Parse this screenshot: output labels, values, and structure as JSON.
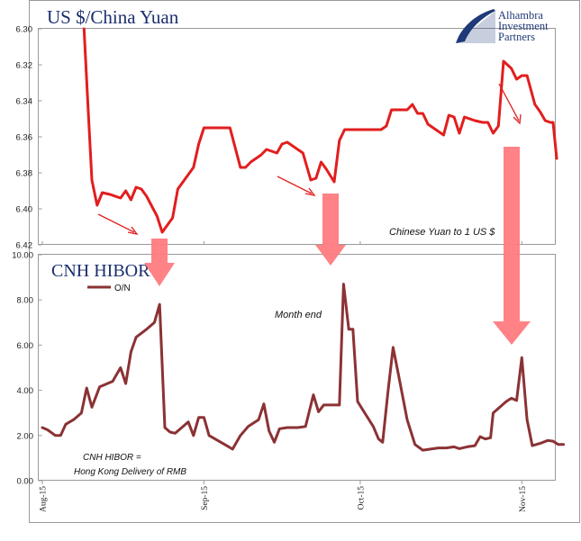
{
  "logo": {
    "line1": "Alhambra",
    "line2": "Investment",
    "line3": "Partners",
    "color": "#1f3a78"
  },
  "chart_data": [
    {
      "type": "line",
      "title": "US $/China Yuan",
      "annotation": "Chinese Yuan to 1 US $",
      "yticks": [
        "6.30",
        "6.32",
        "6.34",
        "6.36",
        "6.38",
        "6.40",
        "6.42"
      ],
      "ylim": [
        6.3,
        6.42
      ],
      "y_inverted": true,
      "xlim": [
        0,
        98
      ],
      "x_ticks_at_days": [
        0,
        31,
        61,
        92
      ],
      "grid": false,
      "color": "#e21e1e",
      "series": [
        {
          "points": [
            [
              8,
              6.3
            ],
            [
              8.8,
              6.345
            ],
            [
              9.5,
              6.384
            ],
            [
              10.5,
              6.398
            ],
            [
              11.5,
              6.391
            ],
            [
              13,
              6.392
            ],
            [
              15,
              6.394
            ],
            [
              16,
              6.39
            ],
            [
              17,
              6.395
            ],
            [
              18,
              6.388
            ],
            [
              19,
              6.389
            ],
            [
              20,
              6.393
            ],
            [
              22,
              6.404
            ],
            [
              23,
              6.413
            ],
            [
              25,
              6.405
            ],
            [
              26,
              6.389
            ],
            [
              29,
              6.377
            ],
            [
              30,
              6.364
            ],
            [
              31,
              6.355
            ],
            [
              32,
              6.355
            ],
            [
              33.5,
              6.355
            ],
            [
              35,
              6.355
            ],
            [
              36,
              6.355
            ],
            [
              38,
              6.377
            ],
            [
              39,
              6.377
            ],
            [
              40,
              6.374
            ],
            [
              42,
              6.37
            ],
            [
              43,
              6.367
            ],
            [
              45,
              6.369
            ],
            [
              46,
              6.364
            ],
            [
              47,
              6.363
            ],
            [
              49,
              6.367
            ],
            [
              50,
              6.369
            ],
            [
              51.5,
              6.384
            ],
            [
              52.5,
              6.383
            ],
            [
              53.5,
              6.374
            ],
            [
              54.5,
              6.378
            ],
            [
              56,
              6.385
            ],
            [
              57,
              6.362
            ],
            [
              58,
              6.356
            ],
            [
              60,
              6.356
            ],
            [
              62,
              6.356
            ],
            [
              64,
              6.356
            ],
            [
              65,
              6.356
            ],
            [
              66,
              6.354
            ],
            [
              67,
              6.345
            ],
            [
              68.5,
              6.345
            ],
            [
              70,
              6.345
            ],
            [
              71,
              6.342
            ],
            [
              72,
              6.347
            ],
            [
              73,
              6.347
            ],
            [
              74,
              6.353
            ],
            [
              76,
              6.357
            ],
            [
              77,
              6.359
            ],
            [
              78,
              6.348
            ],
            [
              79,
              6.349
            ],
            [
              80,
              6.358
            ],
            [
              81,
              6.349
            ],
            [
              83,
              6.351
            ],
            [
              84.5,
              6.352
            ],
            [
              85.5,
              6.352
            ],
            [
              86.5,
              6.358
            ],
            [
              87.5,
              6.354
            ],
            [
              88.5,
              6.318
            ],
            [
              90,
              6.322
            ],
            [
              91,
              6.328
            ],
            [
              92,
              6.326
            ],
            [
              93,
              6.326
            ],
            [
              94.5,
              6.342
            ],
            [
              95.5,
              6.346
            ],
            [
              96.5,
              6.351
            ],
            [
              97.5,
              6.352
            ],
            [
              98,
              6.352
            ],
            [
              98.7,
              6.372
            ]
          ]
        }
      ]
    },
    {
      "type": "line",
      "title": "CNH HIBOR",
      "legend": "O/N",
      "legend_position": "top-left",
      "annotations": [
        "Month end",
        "CNH HIBOR =",
        "Hong Kong Delivery of RMB"
      ],
      "yticks": [
        "0.00",
        "2.00",
        "4.00",
        "6.00",
        "8.00",
        "10.00"
      ],
      "ylim": [
        0,
        10
      ],
      "xlim": [
        0,
        98
      ],
      "xticks": [
        "Aug-15",
        "Sep-15",
        "Oct-15",
        "Nov-15"
      ],
      "x_ticks_at_days": [
        0,
        31,
        61,
        92
      ],
      "grid": false,
      "color": "#8b3234",
      "series": [
        {
          "name": "O/N",
          "points": [
            [
              0,
              2.35
            ],
            [
              1,
              2.25
            ],
            [
              2.5,
              2.0
            ],
            [
              3.5,
              2.0
            ],
            [
              4.5,
              2.5
            ],
            [
              6,
              2.7
            ],
            [
              7.5,
              3.0
            ],
            [
              8.5,
              4.1
            ],
            [
              9.5,
              3.25
            ],
            [
              11,
              4.15
            ],
            [
              13.5,
              4.4
            ],
            [
              15,
              5.0
            ],
            [
              16,
              4.3
            ],
            [
              17,
              5.7
            ],
            [
              18,
              6.35
            ],
            [
              20,
              6.7
            ],
            [
              21.5,
              7.0
            ],
            [
              22.5,
              7.8
            ],
            [
              23.5,
              2.35
            ],
            [
              24.5,
              2.15
            ],
            [
              25.5,
              2.1
            ],
            [
              28,
              2.6
            ],
            [
              29,
              2.0
            ],
            [
              30,
              2.8
            ],
            [
              31,
              2.8
            ],
            [
              32,
              2.0
            ],
            [
              33.5,
              1.8
            ],
            [
              35,
              1.6
            ],
            [
              36.5,
              1.4
            ],
            [
              38,
              2.0
            ],
            [
              39.5,
              2.4
            ],
            [
              41.5,
              2.7
            ],
            [
              42.5,
              3.4
            ],
            [
              43.5,
              2.2
            ],
            [
              44.5,
              1.7
            ],
            [
              45.5,
              2.3
            ],
            [
              47,
              2.35
            ],
            [
              49,
              2.35
            ],
            [
              50.5,
              2.4
            ],
            [
              52,
              3.8
            ],
            [
              53,
              3.05
            ],
            [
              54,
              3.35
            ],
            [
              56.5,
              3.35
            ],
            [
              57,
              3.35
            ],
            [
              57.8,
              8.7
            ],
            [
              58.8,
              6.7
            ],
            [
              59.6,
              6.7
            ],
            [
              60.5,
              3.5
            ],
            [
              62,
              2.95
            ],
            [
              63.5,
              2.4
            ],
            [
              64.5,
              1.85
            ],
            [
              65.3,
              1.7
            ],
            [
              66.3,
              3.9
            ],
            [
              67.3,
              5.9
            ],
            [
              68.5,
              4.5
            ],
            [
              70,
              2.7
            ],
            [
              71.5,
              1.6
            ],
            [
              73,
              1.35
            ],
            [
              74.5,
              1.4
            ],
            [
              76,
              1.45
            ],
            [
              77.5,
              1.45
            ],
            [
              79,
              1.5
            ],
            [
              80,
              1.42
            ],
            [
              81.5,
              1.5
            ],
            [
              83,
              1.55
            ],
            [
              84,
              1.95
            ],
            [
              85,
              1.85
            ],
            [
              86,
              1.9
            ],
            [
              86.5,
              3.0
            ],
            [
              89,
              3.5
            ],
            [
              90,
              3.65
            ],
            [
              91,
              3.55
            ],
            [
              92,
              5.45
            ],
            [
              93,
              2.7
            ],
            [
              94,
              1.55
            ],
            [
              95.5,
              1.65
            ],
            [
              97,
              1.78
            ],
            [
              98,
              1.75
            ],
            [
              99,
              1.6
            ],
            [
              100,
              1.6
            ]
          ]
        }
      ]
    }
  ]
}
